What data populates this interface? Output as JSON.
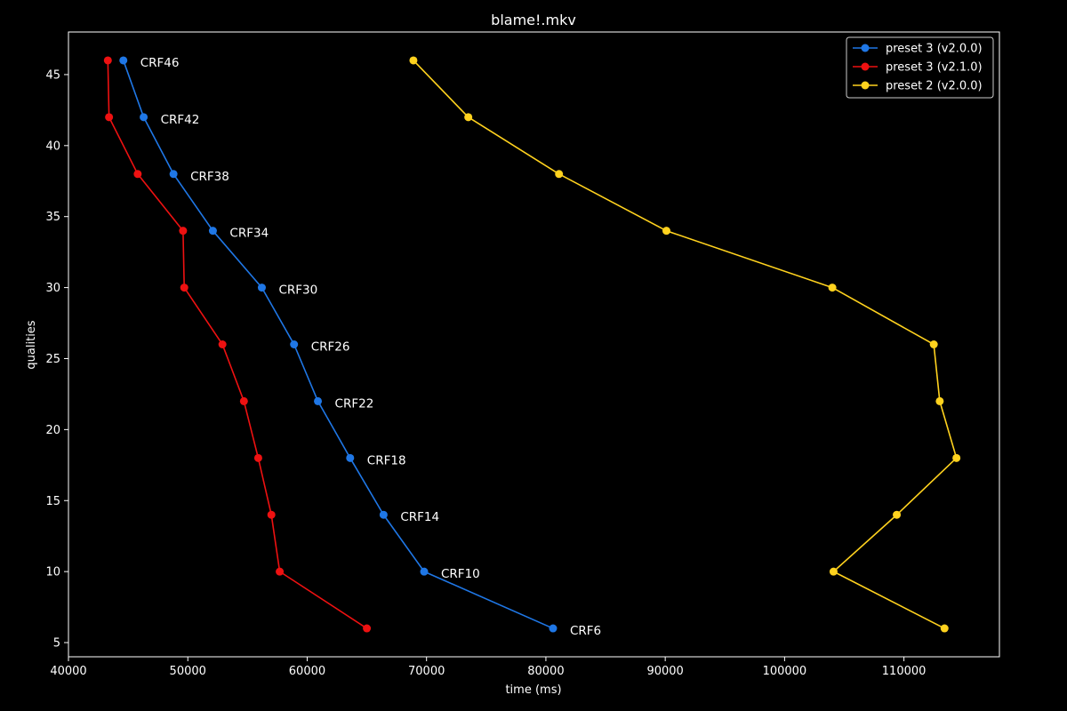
{
  "chart_data": {
    "type": "line",
    "title": "blame!.mkv",
    "xlabel": "time (ms)",
    "ylabel": "qualities",
    "xlim": [
      40000,
      118000
    ],
    "ylim": [
      4,
      48
    ],
    "xticks": [
      40000,
      50000,
      60000,
      70000,
      80000,
      90000,
      100000,
      110000
    ],
    "yticks": [
      5,
      10,
      15,
      20,
      25,
      30,
      35,
      40,
      45
    ],
    "grid": false,
    "legend_position": "top-right",
    "y": [
      46,
      42,
      38,
      34,
      30,
      26,
      22,
      18,
      14,
      10,
      6
    ],
    "point_labels": [
      "CRF46",
      "CRF42",
      "CRF38",
      "CRF34",
      "CRF30",
      "CRF26",
      "CRF22",
      "CRF18",
      "CRF14",
      "CRF10",
      "CRF6"
    ],
    "series": [
      {
        "name": "preset 3 (v2.0.0)",
        "color": "#1f77e6",
        "x": [
          44600,
          46300,
          48800,
          52100,
          56200,
          58900,
          60900,
          63600,
          66400,
          69800,
          80600
        ],
        "labeled": true
      },
      {
        "name": "preset 3 (v2.1.0)",
        "color": "#ee1111",
        "x": [
          43300,
          43400,
          45800,
          49600,
          49700,
          52900,
          54700,
          55900,
          57000,
          57700,
          65000
        ],
        "labeled": false
      },
      {
        "name": "preset 2 (v2.0.0)",
        "color": "#ffd21e",
        "x": [
          68900,
          73500,
          81100,
          90100,
          104000,
          112500,
          113000,
          114400,
          109400,
          104100,
          113400
        ],
        "labeled": false
      }
    ]
  }
}
